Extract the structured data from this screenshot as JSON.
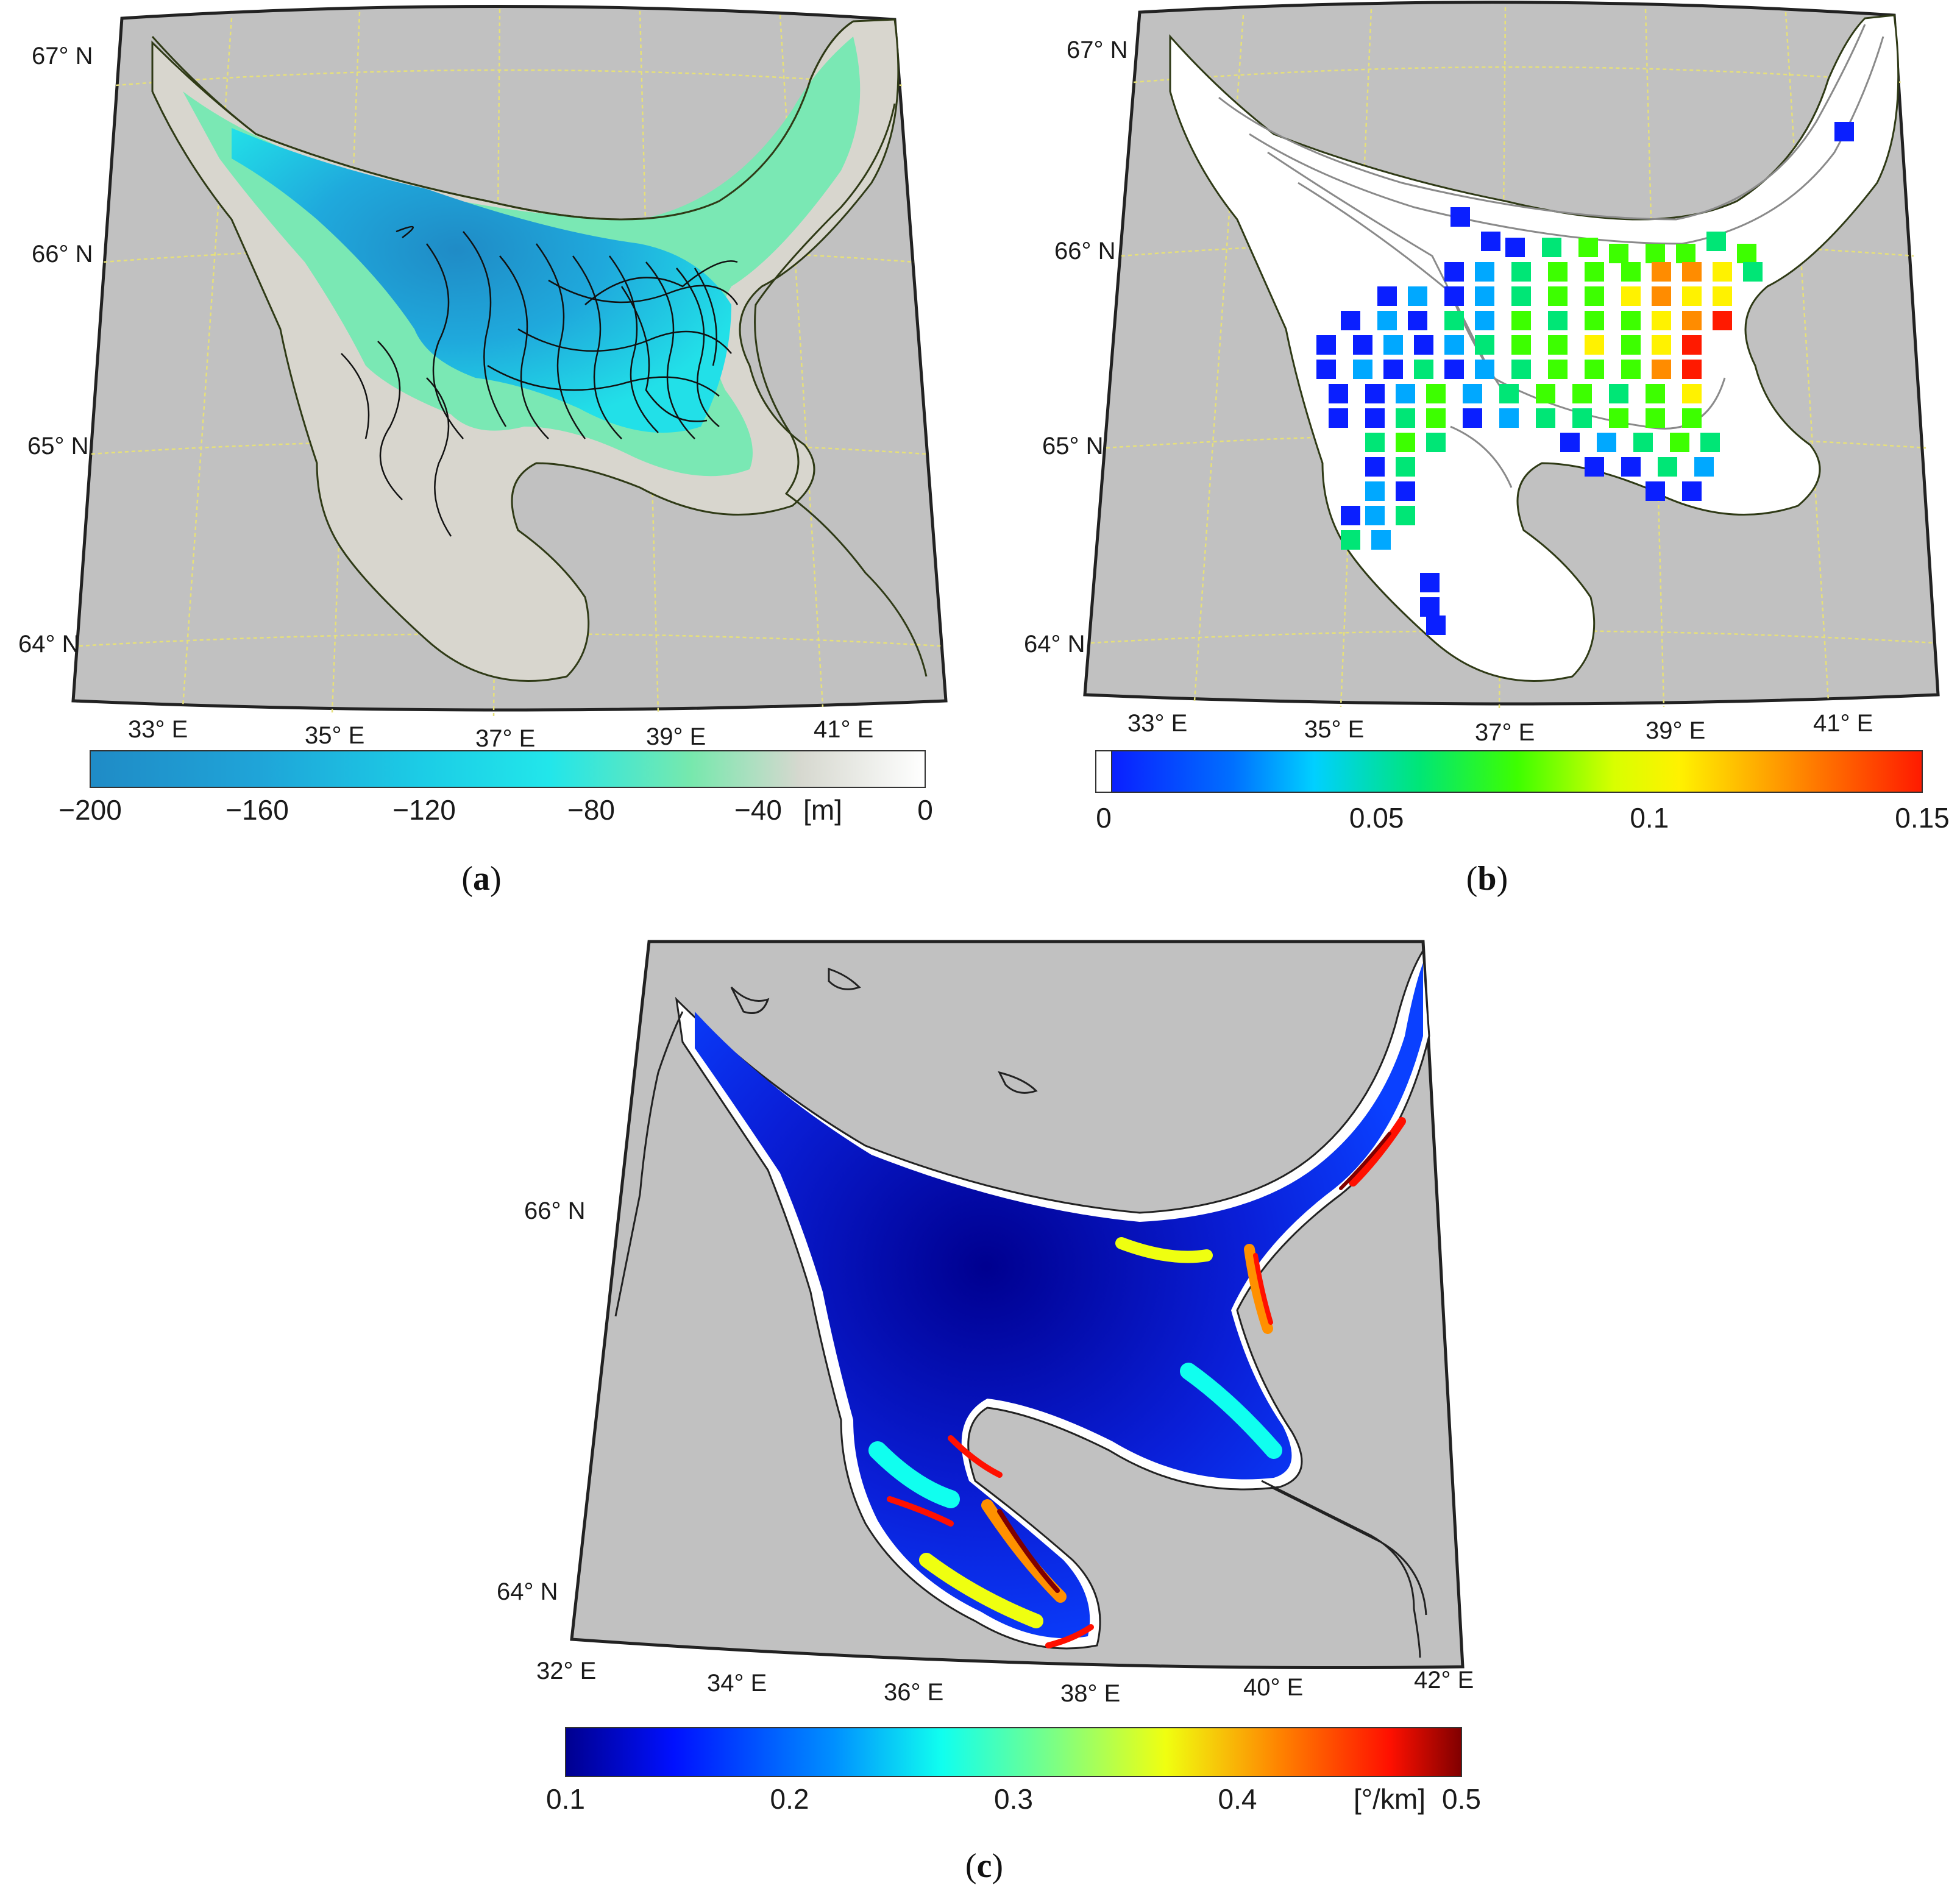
{
  "panels": {
    "a": {
      "caption_open": "(",
      "caption_letter": "a",
      "caption_close": ")",
      "lat_labels": [
        "67° N",
        "66° N",
        "65° N",
        "64° N"
      ],
      "lon_labels": [
        "33° E",
        "35° E",
        "37° E",
        "39° E",
        "41° E"
      ],
      "colorbar": {
        "ticks": [
          "−200",
          "−160",
          "−120",
          "−80",
          "−40",
          "0"
        ],
        "tick_values": [
          -200,
          -160,
          -120,
          -80,
          -40,
          0
        ],
        "range": [
          -200,
          0
        ],
        "unit": "[m]",
        "colors": [
          "#1f8bc6",
          "#1fb0e0",
          "#22e6ea",
          "#6be8b5",
          "#d6d8cf",
          "#ffffff"
        ]
      },
      "colors": {
        "land": "#c1c1c1",
        "coast": "#2f3a16",
        "grid": "#e6e07a",
        "tracks": "#111111"
      }
    },
    "b": {
      "caption_open": "(",
      "caption_letter": "b",
      "caption_close": ")",
      "lat_labels": [
        "67° N",
        "66° N",
        "65° N",
        "64° N"
      ],
      "lon_labels": [
        "33° E",
        "35° E",
        "37° E",
        "39° E",
        "41° E"
      ],
      "colorbar": {
        "ticks": [
          "0",
          "0.05",
          "0.1",
          "0.15"
        ],
        "tick_values": [
          0,
          0.05,
          0.1,
          0.15
        ],
        "range": [
          0,
          0.15
        ],
        "colors": [
          "#0a1fff",
          "#00a8ff",
          "#00e676",
          "#3dff00",
          "#fff200",
          "#ff8c00",
          "#ff1a00"
        ]
      },
      "colors": {
        "land": "#c1c1c1",
        "coast": "#2f3a16",
        "grid": "#e6e07a",
        "isobath": "#8a8a8a"
      }
    },
    "c": {
      "caption_open": "(",
      "caption_letter": "c",
      "caption_close": ")",
      "lat_labels": [
        "66° N",
        "64° N"
      ],
      "lon_labels": [
        "32° E",
        "34° E",
        "36° E",
        "38° E",
        "40° E",
        "42° E"
      ],
      "colorbar": {
        "ticks": [
          "0.1",
          "0.2",
          "0.3",
          "0.4",
          "0.5"
        ],
        "tick_values": [
          0.1,
          0.2,
          0.3,
          0.4,
          0.5
        ],
        "range": [
          0.1,
          0.5
        ],
        "unit": "[°/km]",
        "colors": [
          "#00008f",
          "#0020ff",
          "#00a0ff",
          "#10ffef",
          "#80ff80",
          "#efff10",
          "#ff9000",
          "#ff1000",
          "#800000"
        ]
      },
      "colors": {
        "land": "#c1c1c1",
        "coast": "#222222",
        "sea_base": "#0a1fc8"
      }
    }
  }
}
